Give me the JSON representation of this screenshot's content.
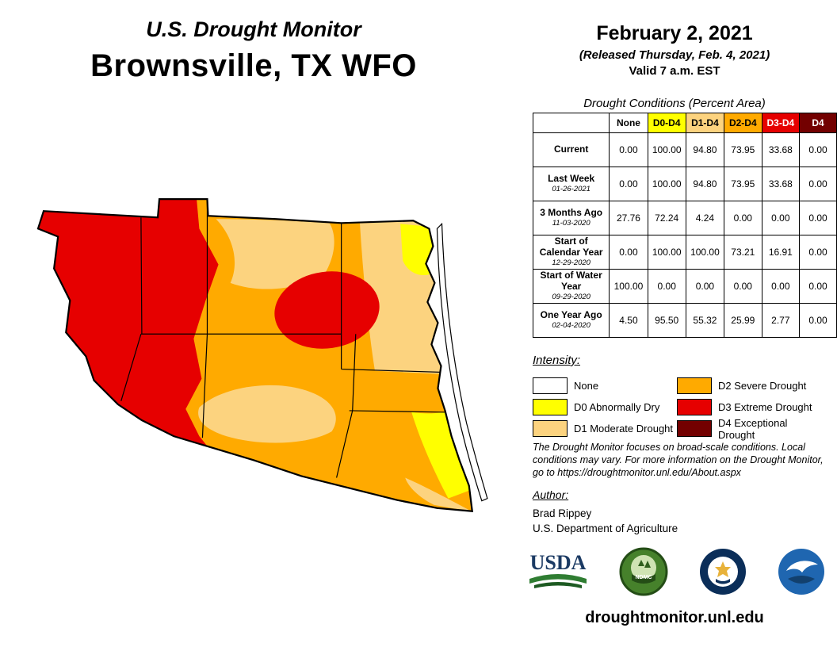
{
  "header": {
    "title": "U.S. Drought Monitor",
    "region": "Brownsville, TX WFO",
    "date": "February 2, 2021",
    "released": "(Released Thursday, Feb. 4, 2021)",
    "valid": "Valid 7 a.m. EST"
  },
  "table": {
    "title": "Drought Conditions (Percent Area)",
    "columns": [
      "None",
      "D0-D4",
      "D1-D4",
      "D2-D4",
      "D3-D4",
      "D4"
    ],
    "column_colors": [
      "#FFFFFF",
      "#FFFF00",
      "#FCD37F",
      "#FFAA00",
      "#E60000",
      "#730000"
    ],
    "column_text_colors": [
      "#000000",
      "#000000",
      "#000000",
      "#000000",
      "#FFFFFF",
      "#FFFFFF"
    ],
    "rows": [
      {
        "label": "Current",
        "date": "",
        "values": [
          "0.00",
          "100.00",
          "94.80",
          "73.95",
          "33.68",
          "0.00"
        ]
      },
      {
        "label": "Last Week",
        "date": "01-26-2021",
        "values": [
          "0.00",
          "100.00",
          "94.80",
          "73.95",
          "33.68",
          "0.00"
        ]
      },
      {
        "label": "3 Months Ago",
        "date": "11-03-2020",
        "values": [
          "27.76",
          "72.24",
          "4.24",
          "0.00",
          "0.00",
          "0.00"
        ]
      },
      {
        "label": "Start of Calendar Year",
        "date": "12-29-2020",
        "values": [
          "0.00",
          "100.00",
          "100.00",
          "73.21",
          "16.91",
          "0.00"
        ]
      },
      {
        "label": "Start of Water Year",
        "date": "09-29-2020",
        "values": [
          "100.00",
          "0.00",
          "0.00",
          "0.00",
          "0.00",
          "0.00"
        ]
      },
      {
        "label": "One Year Ago",
        "date": "02-04-2020",
        "values": [
          "4.50",
          "95.50",
          "55.32",
          "25.99",
          "2.77",
          "0.00"
        ]
      }
    ]
  },
  "legend": {
    "title": "Intensity:",
    "items": [
      {
        "label": "None",
        "color": "#FFFFFF"
      },
      {
        "label": "D0 Abnormally Dry",
        "color": "#FFFF00"
      },
      {
        "label": "D1 Moderate Drought",
        "color": "#FCD37F"
      },
      {
        "label": "D2 Severe Drought",
        "color": "#FFAA00"
      },
      {
        "label": "D3 Extreme Drought",
        "color": "#E60000"
      },
      {
        "label": "D4 Exceptional Drought",
        "color": "#730000"
      }
    ]
  },
  "disclaimer": "The Drought Monitor focuses on broad-scale conditions. Local conditions may vary. For more information on the Drought Monitor, go to https://droughtmonitor.unl.edu/About.aspx",
  "author": {
    "title": "Author:",
    "name": "Brad Rippey",
    "org": "U.S. Department of Agriculture"
  },
  "logos": {
    "usda": "USDA",
    "ndmc": "NDMC",
    "doc": "DOC",
    "noaa": "NOAA"
  },
  "footer": {
    "url": "droughtmonitor.unl.edu"
  }
}
